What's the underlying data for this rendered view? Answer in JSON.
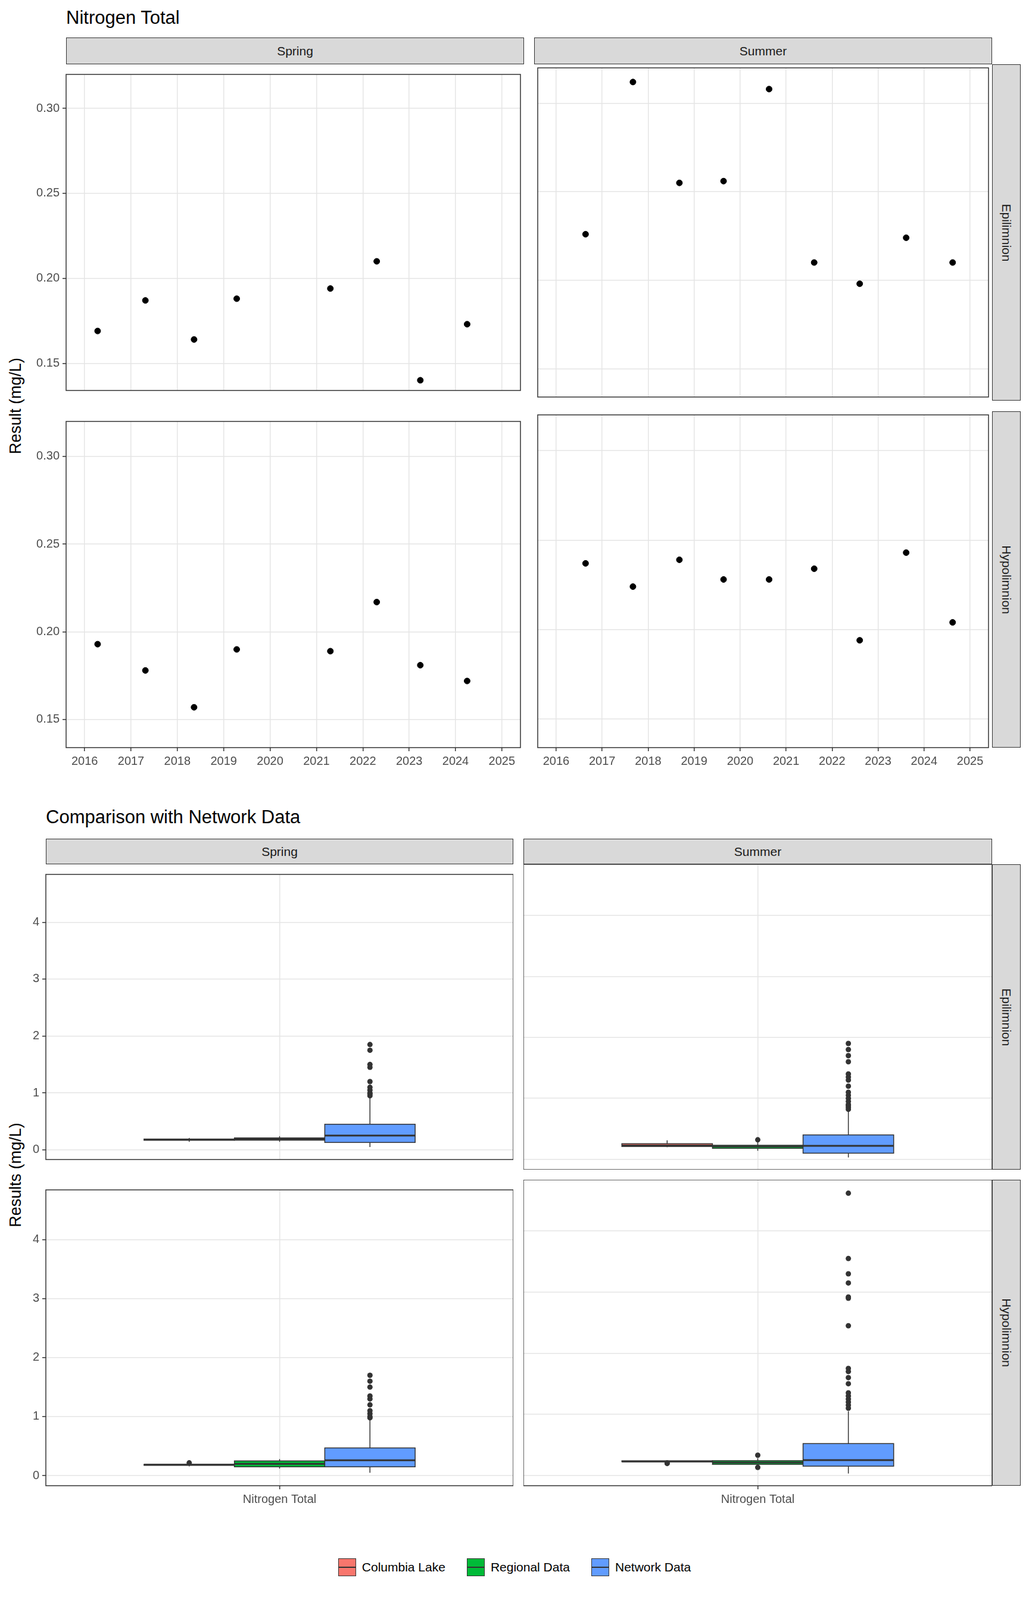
{
  "chart_data": [
    {
      "type": "scatter",
      "title": "Nitrogen Total",
      "y_label": "Result (mg/L)",
      "columns": [
        "Spring",
        "Summer"
      ],
      "rows": [
        "Epilimnion",
        "Hypolimnion"
      ],
      "xlim": [
        2015.6,
        2025.4
      ],
      "xticks": [
        2016,
        2017,
        2018,
        2019,
        2020,
        2021,
        2022,
        2023,
        2024,
        2025
      ],
      "ylim": [
        0.134,
        0.32
      ],
      "yticks": [
        0.15,
        {
          "value": 0.2,
          "label": "0.20"
        },
        0.25,
        {
          "value": 0.3,
          "label": "0.30"
        }
      ],
      "grid": true,
      "color": "#000000",
      "marker": "circle",
      "panels": [
        {
          "column": "Spring",
          "row": "Epilimnion",
          "x": [
            2016.28,
            2017.31,
            2018.36,
            2019.28,
            2021.3,
            2022.3,
            2023.24,
            2024.25
          ],
          "values": [
            0.169,
            0.187,
            0.164,
            0.188,
            0.194,
            0.21,
            0.14,
            0.173
          ]
        },
        {
          "column": "Summer",
          "row": "Epilimnion",
          "x": [
            2016.64,
            2017.67,
            2018.68,
            2019.64,
            2020.63,
            2021.61,
            2022.6,
            2023.61,
            2024.62
          ],
          "values": [
            0.226,
            0.312,
            0.255,
            0.256,
            0.308,
            0.21,
            0.198,
            0.224,
            0.21
          ]
        },
        {
          "column": "Spring",
          "row": "Hypolimnion",
          "x": [
            2016.28,
            2017.31,
            2018.36,
            2019.28,
            2021.3,
            2022.3,
            2023.24,
            2024.25
          ],
          "values": [
            0.193,
            0.178,
            0.157,
            0.19,
            0.189,
            0.217,
            0.181,
            0.172
          ]
        },
        {
          "column": "Summer",
          "row": "Hypolimnion",
          "x": [
            2016.64,
            2017.67,
            2018.68,
            2019.64,
            2020.63,
            2021.61,
            2022.6,
            2023.61,
            2024.62
          ],
          "values": [
            0.237,
            0.224,
            0.239,
            0.228,
            0.228,
            0.234,
            0.194,
            0.243,
            0.204
          ]
        }
      ]
    },
    {
      "type": "boxplot",
      "title": "Comparison with Network Data",
      "y_label": "Results (mg/L)",
      "columns": [
        "Spring",
        "Summer"
      ],
      "rows": [
        "Epilimnion",
        "Hypolimnion"
      ],
      "categories": [
        "Nitrogen Total"
      ],
      "ylim": [
        -0.17,
        4.84
      ],
      "yticks": [
        0,
        1,
        2,
        3,
        4
      ],
      "grid": true,
      "legend": "bottom",
      "series": [
        {
          "name": "Columbia Lake",
          "color": "#F8766D"
        },
        {
          "name": "Regional Data",
          "color": "#00BA38"
        },
        {
          "name": "Network Data",
          "color": "#619CFF"
        }
      ],
      "panels": [
        {
          "column": "Spring",
          "row": "Epilimnion",
          "boxes": [
            {
              "min": 0.14,
              "q1": 0.168,
              "median": 0.18,
              "q3": 0.19,
              "max": 0.21,
              "outliers": []
            },
            {
              "min": 0.14,
              "q1": 0.17,
              "median": 0.19,
              "q3": 0.21,
              "max": 0.24,
              "outliers": []
            },
            {
              "min": 0.05,
              "q1": 0.13,
              "median": 0.25,
              "q3": 0.45,
              "max": 0.92,
              "outliers": [
                0.95,
                0.98,
                1.0,
                1.05,
                1.1,
                1.2,
                1.45,
                1.5,
                1.75,
                1.85
              ]
            }
          ]
        },
        {
          "column": "Summer",
          "row": "Epilimnion",
          "boxes": [
            {
              "min": 0.198,
              "q1": 0.21,
              "median": 0.225,
              "q3": 0.256,
              "max": 0.312,
              "outliers": []
            },
            {
              "min": 0.14,
              "q1": 0.18,
              "median": 0.21,
              "q3": 0.23,
              "max": 0.28,
              "outliers": [
                0.32
              ]
            },
            {
              "min": 0.03,
              "q1": 0.1,
              "median": 0.22,
              "q3": 0.4,
              "max": 0.8,
              "outliers": [
                0.82,
                0.85,
                0.88,
                0.9,
                0.95,
                1.0,
                1.05,
                1.1,
                1.2,
                1.3,
                1.35,
                1.4,
                1.6,
                1.7,
                1.8,
                1.9
              ]
            }
          ]
        },
        {
          "column": "Spring",
          "row": "Hypolimnion",
          "boxes": [
            {
              "min": 0.157,
              "q1": 0.176,
              "median": 0.185,
              "q3": 0.191,
              "max": 0.193,
              "outliers": [
                0.217
              ]
            },
            {
              "min": 0.12,
              "q1": 0.15,
              "median": 0.2,
              "q3": 0.25,
              "max": 0.28,
              "outliers": []
            },
            {
              "min": 0.05,
              "q1": 0.15,
              "median": 0.26,
              "q3": 0.47,
              "max": 0.95,
              "outliers": [
                0.98,
                1.0,
                1.05,
                1.1,
                1.2,
                1.3,
                1.35,
                1.5,
                1.6,
                1.7
              ]
            }
          ]
        },
        {
          "column": "Summer",
          "row": "Hypolimnion",
          "boxes": [
            {
              "min": 0.224,
              "q1": 0.224,
              "median": 0.228,
              "q3": 0.237,
              "max": 0.243,
              "outliers": [
                0.194,
                0.204
              ]
            },
            {
              "min": 0.15,
              "q1": 0.18,
              "median": 0.21,
              "q3": 0.24,
              "max": 0.28,
              "outliers": [
                0.33,
                0.13
              ]
            },
            {
              "min": 0.03,
              "q1": 0.15,
              "median": 0.25,
              "q3": 0.52,
              "max": 1.05,
              "outliers": [
                1.1,
                1.15,
                1.2,
                1.25,
                1.3,
                1.35,
                1.5,
                1.6,
                1.7,
                1.75,
                2.45,
                2.9,
                2.92,
                3.15,
                3.3,
                3.55,
                4.62
              ]
            }
          ]
        }
      ]
    }
  ]
}
